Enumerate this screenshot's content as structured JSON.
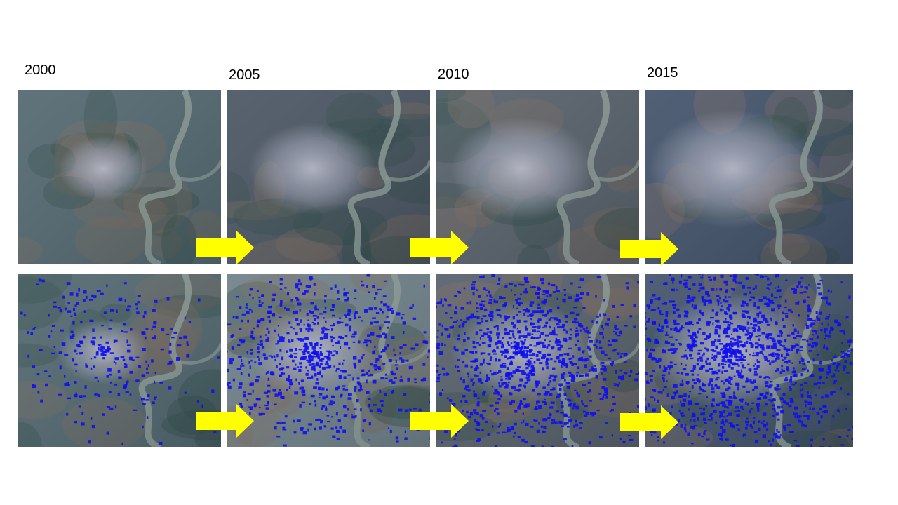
{
  "years": [
    "2000",
    "2005",
    "2010",
    "2015"
  ]
}
